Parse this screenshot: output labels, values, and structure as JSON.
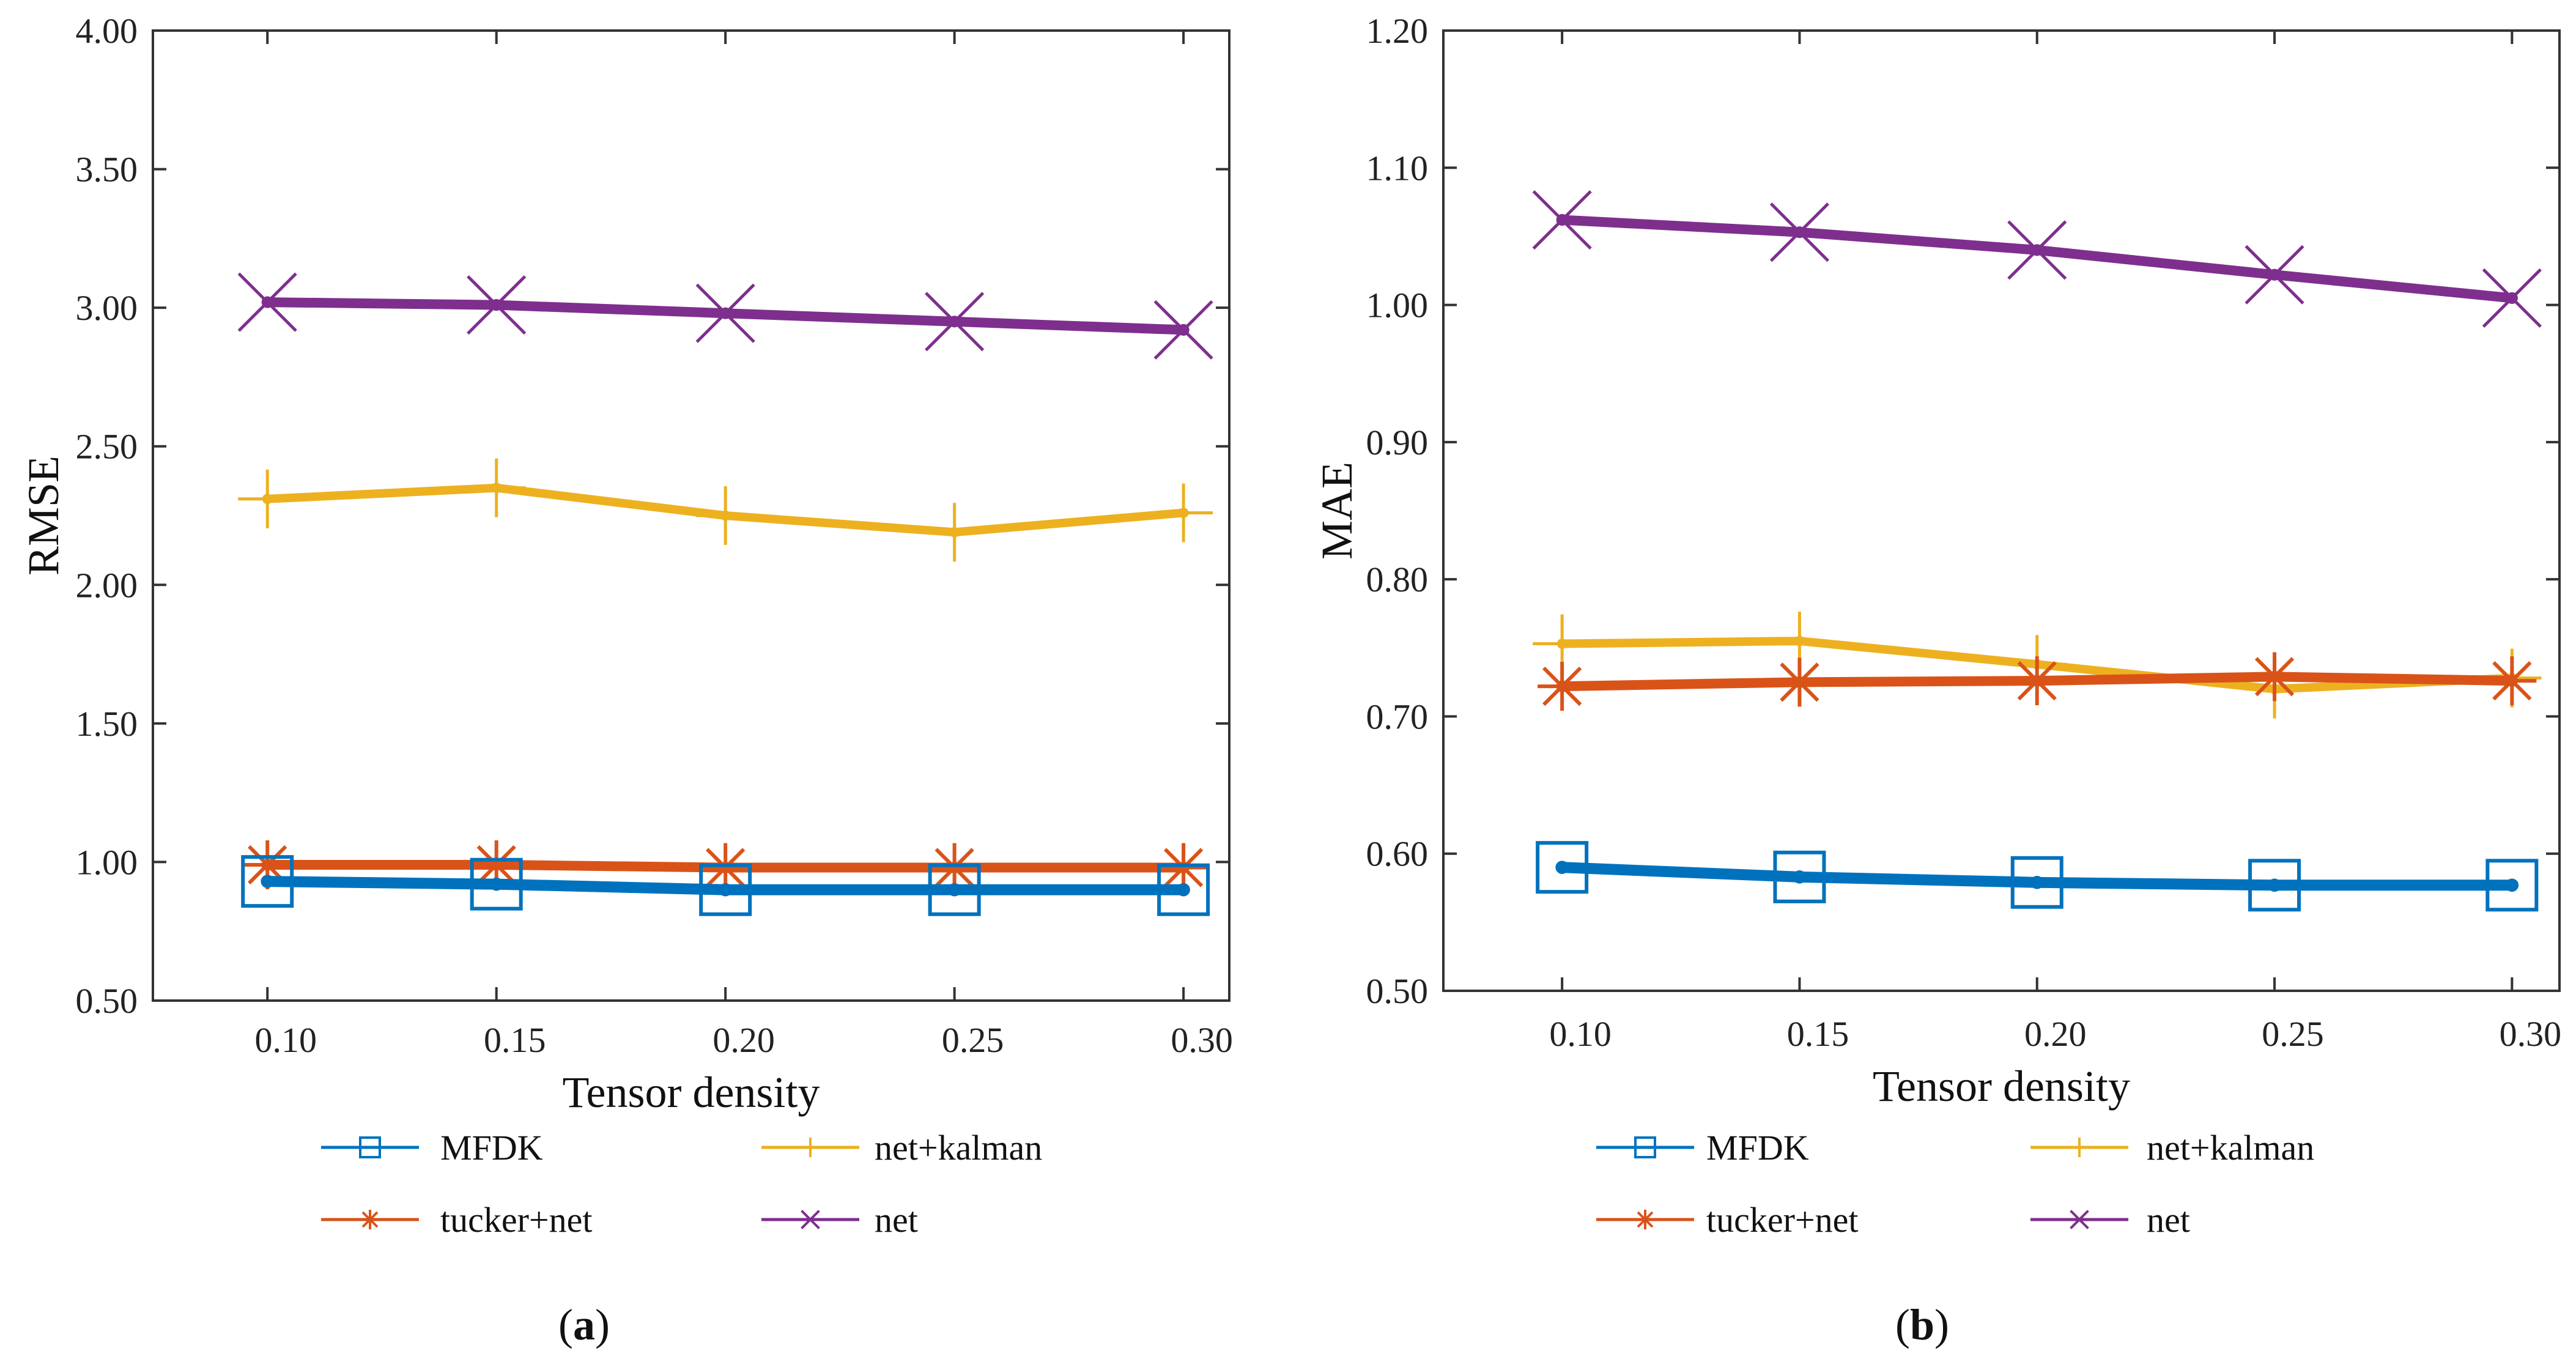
{
  "colors": {
    "MFDK": "#0072bd",
    "net+kalman": "#edb120",
    "tucker+net": "#d95319",
    "net": "#7e2f8e",
    "axis": "#333333"
  },
  "series_markers": {
    "MFDK": "square-icon",
    "net+kalman": "plus-icon",
    "tucker+net": "asterisk-icon",
    "net": "x-mark-icon"
  },
  "chart_data": [
    {
      "type": "line",
      "caption": {
        "open": "(",
        "letter": "a",
        "close": ")"
      },
      "xlabel": "Tensor density",
      "ylabel": "RMSE",
      "xlim": [
        0.075,
        0.31
      ],
      "ylim": [
        0.5,
        4.0
      ],
      "x": [
        0.1,
        0.15,
        0.2,
        0.25,
        0.3
      ],
      "x_tick_labels": [
        "0.10",
        "0.15",
        "0.20",
        "0.25",
        "0.30"
      ],
      "y_ticks": [
        0.5,
        1.0,
        1.5,
        2.0,
        2.5,
        3.0,
        3.5,
        4.0
      ],
      "y_tick_labels": [
        "0.50",
        "1.00",
        "1.50",
        "2.00",
        "2.50",
        "3.00",
        "3.50",
        "4.00"
      ],
      "series": [
        {
          "name": "MFDK",
          "values": [
            0.93,
            0.92,
            0.9,
            0.9,
            0.9
          ]
        },
        {
          "name": "net+kalman",
          "values": [
            2.31,
            2.35,
            2.25,
            2.19,
            2.26
          ]
        },
        {
          "name": "tucker+net",
          "values": [
            0.99,
            0.99,
            0.98,
            0.98,
            0.98
          ]
        },
        {
          "name": "net",
          "values": [
            3.02,
            3.01,
            2.98,
            2.95,
            2.92
          ]
        }
      ],
      "legend": [
        "MFDK",
        "net+kalman",
        "tucker+net",
        "net"
      ]
    },
    {
      "type": "line",
      "caption": {
        "open": "(",
        "letter": "b",
        "close": ")"
      },
      "xlabel": "Tensor density",
      "ylabel": "MAE",
      "xlim": [
        0.075,
        0.31
      ],
      "ylim": [
        0.5,
        1.2
      ],
      "x": [
        0.1,
        0.15,
        0.2,
        0.25,
        0.3
      ],
      "x_tick_labels": [
        "0.10",
        "0.15",
        "0.20",
        "0.25",
        "0.30"
      ],
      "y_ticks": [
        0.5,
        0.6,
        0.7,
        0.8,
        0.9,
        1.0,
        1.1,
        1.2
      ],
      "y_tick_labels": [
        "0.50",
        "0.60",
        "0.70",
        "0.80",
        "0.90",
        "1.00",
        "1.10",
        "1.20"
      ],
      "series": [
        {
          "name": "MFDK",
          "values": [
            0.59,
            0.583,
            0.579,
            0.577,
            0.577
          ]
        },
        {
          "name": "net+kalman",
          "values": [
            0.753,
            0.755,
            0.738,
            0.72,
            0.728
          ]
        },
        {
          "name": "tucker+net",
          "values": [
            0.722,
            0.725,
            0.726,
            0.729,
            0.726
          ]
        },
        {
          "name": "net",
          "values": [
            1.062,
            1.053,
            1.04,
            1.022,
            1.005
          ]
        }
      ],
      "legend": [
        "MFDK",
        "net+kalman",
        "tucker+net",
        "net"
      ]
    }
  ]
}
